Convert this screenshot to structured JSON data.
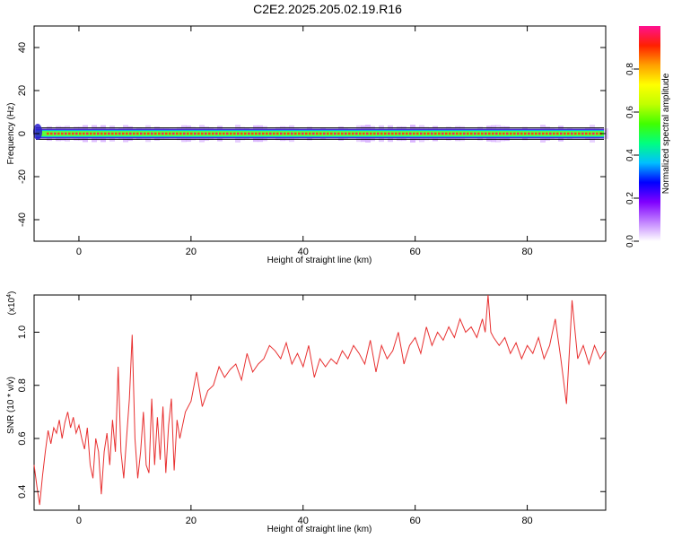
{
  "title": "C2E2.2025.205.02.19.R16",
  "chart_data": [
    {
      "type": "heatmap",
      "title": "C2E2.2025.205.02.19.R16",
      "xlabel": "Height of straight line (km)",
      "ylabel": "Frequency (Hz)",
      "xlim": [
        -8,
        94
      ],
      "ylim": [
        -50,
        50
      ],
      "xticks": [
        0,
        20,
        40,
        60,
        80
      ],
      "yticks": [
        -40,
        -20,
        0,
        20,
        40
      ],
      "yticklabels": [
        "-40",
        "-20",
        "0",
        "20",
        "40"
      ],
      "grid": false,
      "band_center_hz": 0,
      "band_halfwidth_hz": 1,
      "colorbar": {
        "label": "Normalized spectral amplitude",
        "range": [
          0,
          1
        ],
        "ticks": [
          0.0,
          0.2,
          0.4,
          0.6,
          0.8
        ],
        "ticklabels": [
          "0.0",
          "0.2",
          "0.4",
          "0.6",
          "0.8"
        ],
        "colors": [
          "#ffffff",
          "#c080ff",
          "#8000ff",
          "#0000ff",
          "#00c0ff",
          "#00ff80",
          "#40ff00",
          "#c0ff00",
          "#ffff00",
          "#ffa000",
          "#ff2000",
          "#ff1090"
        ]
      }
    },
    {
      "type": "line",
      "xlabel": "Height of straight line (km)",
      "ylabel": "SNR (10 * v/v)",
      "scale_label_base": "(x10",
      "scale_label_exp": "4",
      "scale_label_close": ")",
      "xlim": [
        -8,
        94
      ],
      "ylim": [
        0.33,
        1.14
      ],
      "xticks": [
        0,
        20,
        40,
        60,
        80
      ],
      "yticks": [
        0.4,
        0.6,
        0.8,
        1.0
      ],
      "yticklabels": [
        "0.4",
        "0.6",
        "0.8",
        "1.0"
      ],
      "grid": false,
      "series": [
        {
          "color": "#e83030",
          "x": [
            -8,
            -7.5,
            -7,
            -6.5,
            -6,
            -5.5,
            -5,
            -4.5,
            -4,
            -3.5,
            -3,
            -2.5,
            -2,
            -1.5,
            -1,
            -0.5,
            0,
            0.5,
            1,
            1.5,
            2,
            2.5,
            3,
            3.5,
            4,
            4.5,
            5,
            5.5,
            6,
            6.5,
            7,
            7.5,
            8,
            8.5,
            9,
            9.5,
            10,
            10.5,
            11,
            11.5,
            12,
            12.5,
            13,
            13.5,
            14,
            14.5,
            15,
            15.5,
            16,
            16.5,
            17,
            17.5,
            18,
            19,
            20,
            21,
            22,
            23,
            24,
            25,
            26,
            27,
            28,
            29,
            30,
            31,
            32,
            33,
            34,
            35,
            36,
            37,
            38,
            39,
            40,
            41,
            42,
            43,
            44,
            45,
            46,
            47,
            48,
            49,
            50,
            51,
            52,
            53,
            54,
            55,
            56,
            57,
            58,
            59,
            60,
            61,
            62,
            63,
            64,
            65,
            66,
            67,
            68,
            69,
            70,
            71,
            72,
            72.5,
            73,
            73.5,
            74,
            75,
            76,
            77,
            78,
            79,
            80,
            81,
            82,
            83,
            84,
            85,
            86,
            87,
            87.5,
            88,
            89,
            90,
            91,
            92,
            93,
            94
          ],
          "y": [
            0.5,
            0.42,
            0.35,
            0.46,
            0.55,
            0.63,
            0.58,
            0.64,
            0.62,
            0.67,
            0.6,
            0.66,
            0.7,
            0.64,
            0.68,
            0.62,
            0.65,
            0.6,
            0.56,
            0.64,
            0.5,
            0.45,
            0.6,
            0.55,
            0.39,
            0.55,
            0.62,
            0.5,
            0.67,
            0.55,
            0.87,
            0.55,
            0.45,
            0.6,
            0.75,
            0.99,
            0.6,
            0.45,
            0.55,
            0.7,
            0.5,
            0.47,
            0.75,
            0.5,
            0.68,
            0.52,
            0.72,
            0.47,
            0.65,
            0.75,
            0.48,
            0.67,
            0.6,
            0.7,
            0.74,
            0.85,
            0.72,
            0.78,
            0.8,
            0.87,
            0.83,
            0.86,
            0.88,
            0.82,
            0.92,
            0.85,
            0.88,
            0.9,
            0.95,
            0.93,
            0.9,
            0.96,
            0.88,
            0.92,
            0.87,
            0.95,
            0.83,
            0.9,
            0.87,
            0.9,
            0.88,
            0.93,
            0.9,
            0.95,
            0.92,
            0.88,
            0.97,
            0.85,
            0.95,
            0.9,
            0.93,
            1.0,
            0.88,
            0.95,
            0.98,
            0.92,
            1.02,
            0.95,
            1.0,
            0.97,
            1.02,
            0.98,
            1.05,
            1.0,
            1.02,
            0.98,
            1.05,
            1.0,
            1.14,
            1.0,
            0.98,
            0.95,
            0.98,
            0.92,
            0.96,
            0.9,
            0.95,
            0.92,
            0.98,
            0.9,
            0.95,
            1.05,
            0.9,
            0.73,
            0.92,
            1.12,
            0.9,
            0.95,
            0.88,
            0.95,
            0.9,
            0.93
          ]
        }
      ]
    }
  ]
}
